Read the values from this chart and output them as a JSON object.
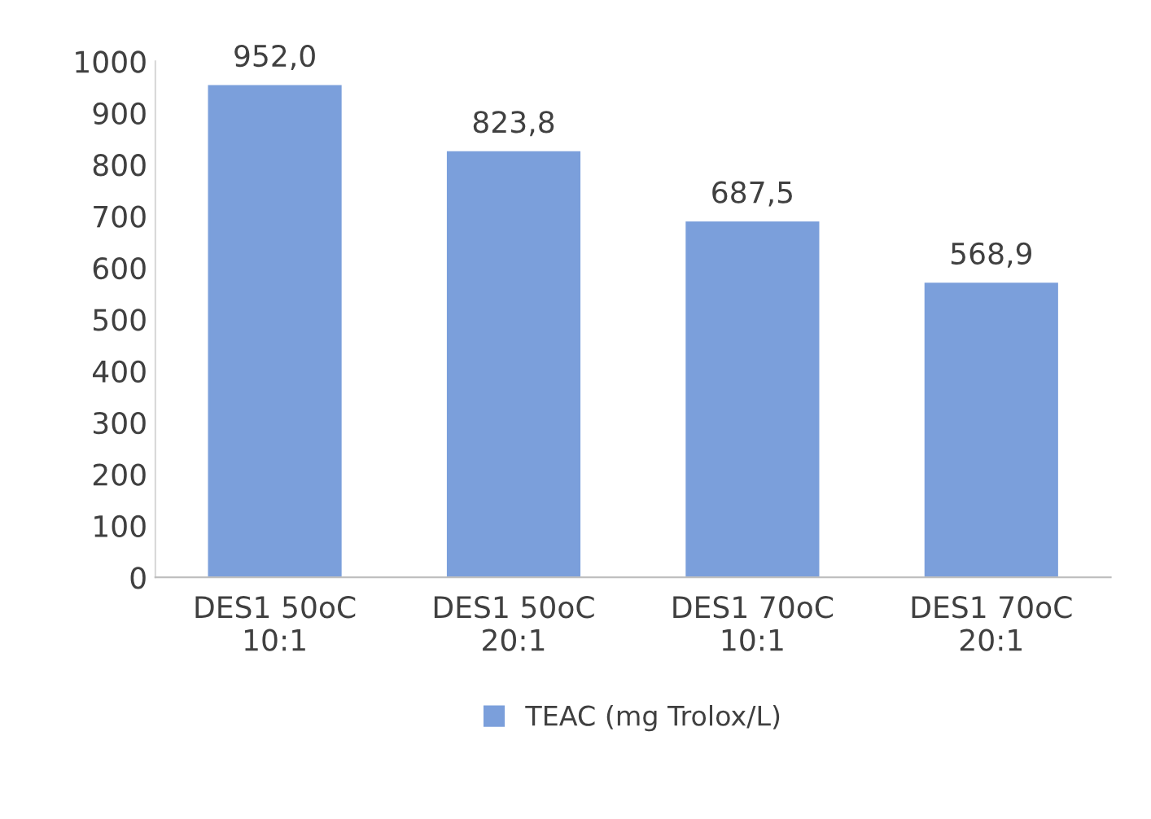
{
  "chart_data": {
    "type": "bar",
    "categories": [
      "DES1 50oC\n10:1",
      "DES1 50oC\n20:1",
      "DES1 70oC\n10:1",
      "DES1 70oC\n20:1"
    ],
    "series": [
      {
        "name": "TEAC (mg Trolox/L)",
        "color": "#7b9fdb",
        "values": [
          952.0,
          823.8,
          687.5,
          568.9
        ],
        "value_labels": [
          "952,0",
          "823,8",
          "687,5",
          "568,9"
        ]
      }
    ],
    "ylim": [
      0,
      1000
    ],
    "yticks": [
      0,
      100,
      200,
      300,
      400,
      500,
      600,
      700,
      800,
      900,
      1000
    ],
    "grid": false,
    "legend": "bottom"
  }
}
